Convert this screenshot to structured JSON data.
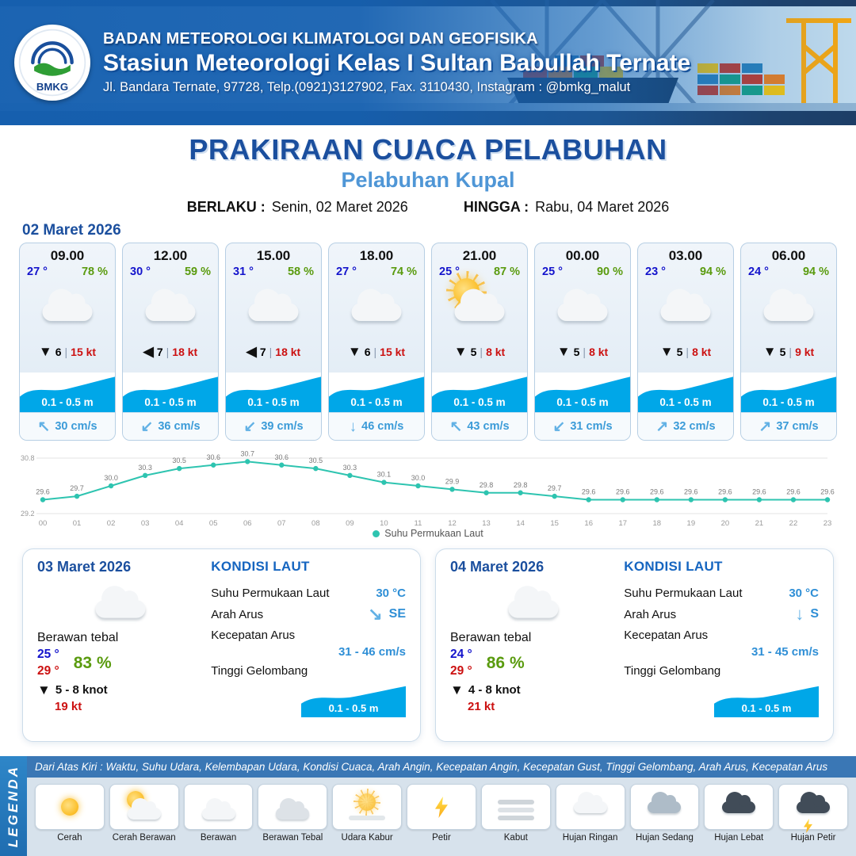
{
  "colors": {
    "header_blue": "#1660b0",
    "title_blue": "#1b4f9e",
    "subtitle_blue": "#4f96d6",
    "temp_blue": "#1414cc",
    "humidity_green": "#5a9b0f",
    "gust_red": "#cc1111",
    "wave_blue": "#00a7e8",
    "current_blue": "#3b9bd8",
    "chart_line_teal": "#2ec4b0"
  },
  "header": {
    "logo_text": "BMKG",
    "org": "BADAN METEOROLOGI KLIMATOLOGI DAN GEOFISIKA",
    "station": "Stasiun Meteorologi Kelas I Sultan Babullah Ternate",
    "address": "Jl. Bandara Ternate, 97728, Telp.(0921)3127902, Fax. 3110430, Instagram : @bmkg_malut"
  },
  "title": {
    "main": "PRAKIRAAN CUACA PELABUHAN",
    "sub": "Pelabuhan Kupal",
    "valid_label": "BERLAKU :",
    "valid_value": "Senin, 02 Maret 2026",
    "until_label": "HINGGA :",
    "until_value": "Rabu, 04 Maret 2026"
  },
  "forecast": {
    "date": "02 Maret 2026",
    "sep": "|",
    "cards": [
      {
        "time": "09.00",
        "temp": "27 °",
        "rh": "78 %",
        "icon": "cloud",
        "wind_arrow": "▼",
        "wind_speed": "6",
        "gust": "15 kt",
        "wave": "0.1 - 0.5 m",
        "current_arrow": "↖",
        "current": "30 cm/s"
      },
      {
        "time": "12.00",
        "temp": "30 °",
        "rh": "59 %",
        "icon": "cloud",
        "wind_arrow": "◀",
        "wind_speed": "7",
        "gust": "18 kt",
        "wave": "0.1 - 0.5 m",
        "current_arrow": "↙",
        "current": "36 cm/s"
      },
      {
        "time": "15.00",
        "temp": "31 °",
        "rh": "58 %",
        "icon": "cloud",
        "wind_arrow": "◀",
        "wind_speed": "7",
        "gust": "18 kt",
        "wave": "0.1 - 0.5 m",
        "current_arrow": "↙",
        "current": "39 cm/s"
      },
      {
        "time": "18.00",
        "temp": "27 °",
        "rh": "74 %",
        "icon": "cloud",
        "wind_arrow": "▼",
        "wind_speed": "6",
        "gust": "15 kt",
        "wave": "0.1 - 0.5 m",
        "current_arrow": "↓",
        "current": "46 cm/s"
      },
      {
        "time": "21.00",
        "temp": "25 °",
        "rh": "87 %",
        "icon": "sun-cloud",
        "wind_arrow": "▼",
        "wind_speed": "5",
        "gust": "8 kt",
        "wave": "0.1 - 0.5 m",
        "current_arrow": "↖",
        "current": "43 cm/s"
      },
      {
        "time": "00.00",
        "temp": "25 °",
        "rh": "90 %",
        "icon": "cloud",
        "wind_arrow": "▼",
        "wind_speed": "5",
        "gust": "8 kt",
        "wave": "0.1 - 0.5 m",
        "current_arrow": "↙",
        "current": "31 cm/s"
      },
      {
        "time": "03.00",
        "temp": "23 °",
        "rh": "94 %",
        "icon": "cloud",
        "wind_arrow": "▼",
        "wind_speed": "5",
        "gust": "8 kt",
        "wave": "0.1 - 0.5 m",
        "current_arrow": "↗",
        "current": "32 cm/s"
      },
      {
        "time": "06.00",
        "temp": "24 °",
        "rh": "94 %",
        "icon": "cloud",
        "wind_arrow": "▼",
        "wind_speed": "5",
        "gust": "9 kt",
        "wave": "0.1 - 0.5 m",
        "current_arrow": "↗",
        "current": "37 cm/s"
      }
    ]
  },
  "chart_data": {
    "type": "line",
    "title": "",
    "series_label": "Suhu Permukaan Laut",
    "x": [
      "00",
      "01",
      "02",
      "03",
      "04",
      "05",
      "06",
      "07",
      "08",
      "09",
      "10",
      "11",
      "12",
      "13",
      "14",
      "15",
      "16",
      "17",
      "18",
      "19",
      "20",
      "21",
      "22",
      "23"
    ],
    "values": [
      29.6,
      29.7,
      30.0,
      30.3,
      30.5,
      30.6,
      30.7,
      30.6,
      30.5,
      30.3,
      30.1,
      30.0,
      29.9,
      29.8,
      29.8,
      29.7,
      29.6,
      29.6,
      29.6,
      29.6,
      29.6,
      29.6,
      29.6,
      29.6
    ],
    "xlabel": "",
    "ylabel": "",
    "ylim": [
      29.2,
      30.8
    ],
    "grid": false,
    "legend_position": "bottom",
    "line_color": "#2ec4b0"
  },
  "sea_labels": {
    "title": "KONDISI LAUT",
    "sst": "Suhu Permukaan Laut",
    "dir": "Arah Arus",
    "speed": "Kecepatan Arus",
    "wave": "Tinggi Gelombang"
  },
  "days": [
    {
      "date": "03 Maret 2026",
      "icon": "cloud",
      "condition": "Berawan tebal",
      "tmin": "25 °",
      "tmax": "29 °",
      "rh": "83 %",
      "wind_arrow": "▼",
      "wind": "5 - 8 knot",
      "gust": "19 kt",
      "sst": "30 °C",
      "current_dir_arrow": "↘",
      "current_dir": "SE",
      "current_speed": "31 - 46 cm/s",
      "wave": "0.1 - 0.5 m"
    },
    {
      "date": "04 Maret 2026",
      "icon": "cloud",
      "condition": "Berawan tebal",
      "tmin": "24 °",
      "tmax": "29 °",
      "rh": "86 %",
      "wind_arrow": "▼",
      "wind": "4 - 8 knot",
      "gust": "21 kt",
      "sst": "30 °C",
      "current_dir_arrow": "↓",
      "current_dir": "S",
      "current_speed": "31 - 45 cm/s",
      "wave": "0.1 - 0.5 m"
    }
  ],
  "legend": {
    "title": "LEGENDA",
    "note": "Dari Atas Kiri : Waktu, Suhu Udara, Kelembapan Udara, Kondisi Cuaca, Arah Angin, Kecepatan Angin, Kecepatan Gust, Tinggi Gelombang, Arah Arus, Kecepatan Arus",
    "items": [
      {
        "label": "Cerah",
        "icon": "sun"
      },
      {
        "label": "Cerah Berawan",
        "icon": "sun-cloud"
      },
      {
        "label": "Berawan",
        "icon": "cloud"
      },
      {
        "label": "Berawan Tebal",
        "icon": "cloud-thick"
      },
      {
        "label": "Udara Kabur",
        "icon": "sun-haze"
      },
      {
        "label": "Petir",
        "icon": "lightning"
      },
      {
        "label": "Kabut",
        "icon": "fog"
      },
      {
        "label": "Hujan Ringan",
        "icon": "rain-light"
      },
      {
        "label": "Hujan Sedang",
        "icon": "rain-medium"
      },
      {
        "label": "Hujan Lebat",
        "icon": "rain-heavy"
      },
      {
        "label": "Hujan Petir",
        "icon": "rain-storm"
      }
    ]
  }
}
